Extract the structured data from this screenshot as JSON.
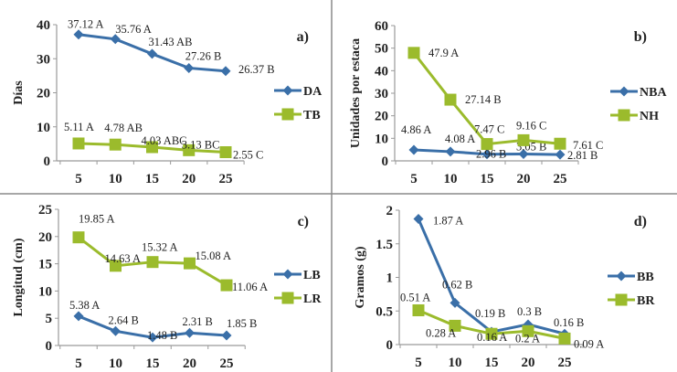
{
  "colors": {
    "blue": "#3a6fa8",
    "green": "#9bbb2c",
    "axis": "#9a9a9a",
    "divider": "#8a8a8a"
  },
  "chart_data": [
    {
      "type": "line",
      "panel": "a)",
      "title": "a)",
      "xlabel": "",
      "ylabel": "Días",
      "x": [
        5,
        10,
        15,
        20,
        25
      ],
      "ylim": [
        0,
        40
      ],
      "yticks": [
        0,
        10,
        20,
        30,
        40
      ],
      "grid": false,
      "legend": "right",
      "series": [
        {
          "name": "DA",
          "marker": "diamond",
          "color": "#3a6fa8",
          "values": [
            37.12,
            35.76,
            31.43,
            27.26,
            26.37
          ],
          "labels": [
            "37.12 A",
            "35.76 A",
            "31.43 AB",
            "27.26 B",
            "26.37 B"
          ]
        },
        {
          "name": "TB",
          "marker": "square",
          "color": "#9bbb2c",
          "values": [
            5.11,
            4.78,
            4.03,
            3.13,
            2.55
          ],
          "labels": [
            "5.11 A",
            "4.78 AB",
            "4.03 ABC",
            "3.13 BC",
            "2.55 C"
          ]
        }
      ]
    },
    {
      "type": "line",
      "panel": "b)",
      "title": "b)",
      "xlabel": "",
      "ylabel": "Unidades por estaca",
      "x": [
        5,
        10,
        15,
        20,
        25
      ],
      "ylim": [
        0,
        60
      ],
      "yticks": [
        0,
        10,
        20,
        30,
        40,
        50,
        60
      ],
      "grid": false,
      "legend": "right",
      "series": [
        {
          "name": "NBA",
          "marker": "diamond",
          "color": "#3a6fa8",
          "values": [
            4.86,
            4.08,
            2.96,
            3.05,
            2.81
          ],
          "labels": [
            "4.86 A",
            "4.08 A",
            "2.96 B",
            "3.05 B",
            "2.81 B"
          ]
        },
        {
          "name": "NH",
          "marker": "square",
          "color": "#9bbb2c",
          "values": [
            47.9,
            27.14,
            7.47,
            9.16,
            7.61
          ],
          "labels": [
            "47.9 A",
            "27.14 B",
            "7.47 C",
            "9.16 C",
            "7.61 C"
          ]
        }
      ]
    },
    {
      "type": "line",
      "panel": "c)",
      "title": "c)",
      "xlabel": "",
      "ylabel": "Longitud (cm)",
      "x": [
        5,
        10,
        15,
        20,
        25
      ],
      "ylim": [
        0,
        25
      ],
      "yticks": [
        0,
        5,
        10,
        15,
        20,
        25
      ],
      "grid": false,
      "legend": "right",
      "series": [
        {
          "name": "LB",
          "marker": "diamond",
          "color": "#3a6fa8",
          "values": [
            5.38,
            2.64,
            1.48,
            2.31,
            1.85
          ],
          "labels": [
            "5.38 A",
            "2.64 B",
            "1.48 B",
            "2.31 B",
            "1.85 B"
          ]
        },
        {
          "name": "LR",
          "marker": "square",
          "color": "#9bbb2c",
          "values": [
            19.85,
            14.63,
            15.32,
            15.08,
            11.06
          ],
          "labels": [
            "19.85 A",
            "14.63 A",
            "15.32 A",
            "15.08 A",
            "11.06 A"
          ]
        }
      ]
    },
    {
      "type": "line",
      "panel": "d)",
      "title": "d)",
      "xlabel": "",
      "ylabel": "Gramos (g)",
      "x": [
        5,
        10,
        15,
        20,
        25
      ],
      "ylim": [
        0,
        2
      ],
      "yticks": [
        0,
        0.5,
        1,
        1.5,
        2
      ],
      "grid": false,
      "legend": "right",
      "series": [
        {
          "name": "BB",
          "marker": "diamond",
          "color": "#3a6fa8",
          "values": [
            1.87,
            0.62,
            0.19,
            0.3,
            0.16
          ],
          "labels": [
            "1.87 A",
            "0.62 B",
            "0.19 B",
            "0.3 B",
            "0.16 B"
          ]
        },
        {
          "name": "BR",
          "marker": "square",
          "color": "#9bbb2c",
          "values": [
            0.51,
            0.28,
            0.16,
            0.2,
            0.09
          ],
          "labels": [
            "0.51 A",
            "0.28 A",
            "0.16 A",
            "0.2 A",
            "0.09 A"
          ]
        }
      ]
    }
  ]
}
